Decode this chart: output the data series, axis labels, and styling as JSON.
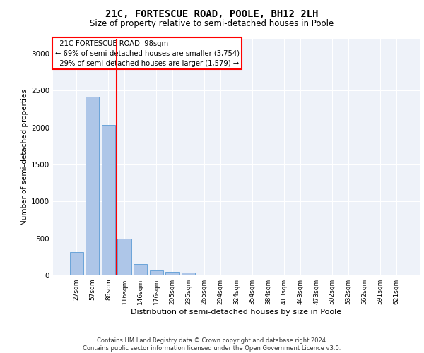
{
  "title": "21C, FORTESCUE ROAD, POOLE, BH12 2LH",
  "subtitle": "Size of property relative to semi-detached houses in Poole",
  "xlabel": "Distribution of semi-detached houses by size in Poole",
  "ylabel": "Number of semi-detached properties",
  "categories": [
    "27sqm",
    "57sqm",
    "86sqm",
    "116sqm",
    "146sqm",
    "176sqm",
    "205sqm",
    "235sqm",
    "265sqm",
    "294sqm",
    "324sqm",
    "354sqm",
    "384sqm",
    "413sqm",
    "443sqm",
    "473sqm",
    "502sqm",
    "532sqm",
    "562sqm",
    "591sqm",
    "621sqm"
  ],
  "values": [
    320,
    2420,
    2030,
    500,
    150,
    70,
    45,
    35,
    0,
    0,
    0,
    0,
    0,
    0,
    0,
    0,
    0,
    0,
    0,
    0,
    0
  ],
  "bar_color": "#aec6e8",
  "bar_edge_color": "#5b9bd5",
  "property_label": "21C FORTESCUE ROAD: 98sqm",
  "pct_smaller": 69,
  "n_smaller": "3,754",
  "pct_larger": 29,
  "n_larger": "1,579",
  "vline_x_index": 2.5,
  "ylim": [
    0,
    3200
  ],
  "yticks": [
    0,
    500,
    1000,
    1500,
    2000,
    2500,
    3000
  ],
  "background_color": "#eef2f9",
  "footer_line1": "Contains HM Land Registry data © Crown copyright and database right 2024.",
  "footer_line2": "Contains public sector information licensed under the Open Government Licence v3.0."
}
